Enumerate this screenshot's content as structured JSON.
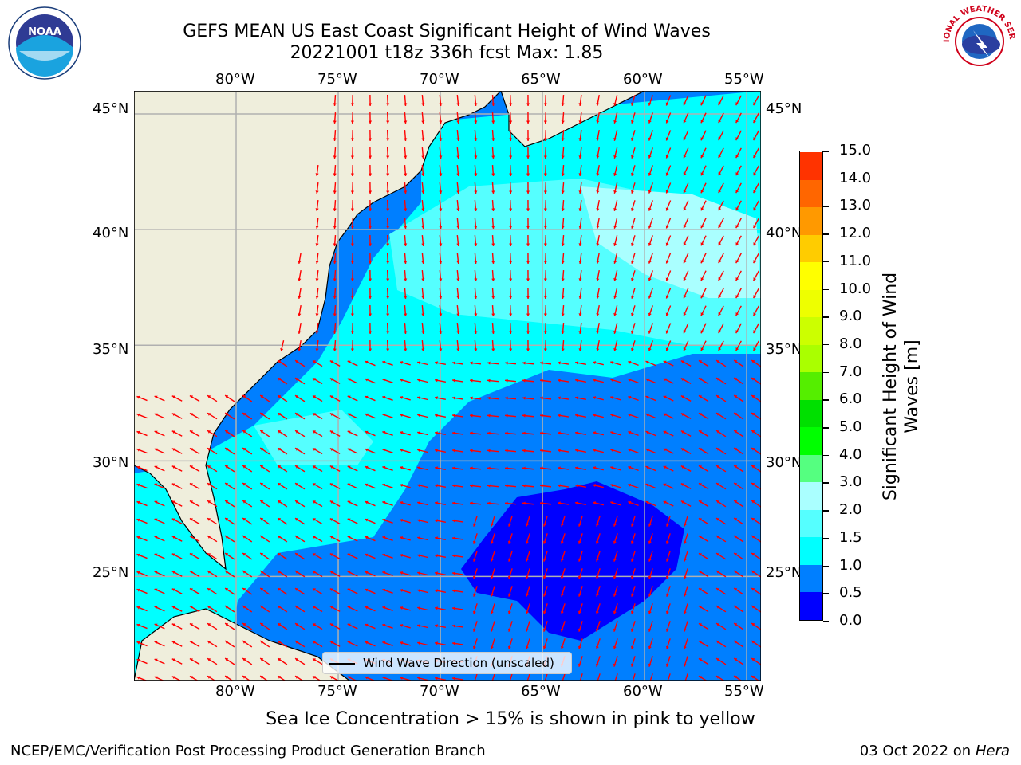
{
  "header": {
    "title_line1": "GEFS MEAN US East Coast Significant Height of Wind Waves",
    "title_line2": "20221001 t18z 336h fcst   Max: 1.85"
  },
  "logos": {
    "left": "NOAA",
    "right": "NATIONAL WEATHER SERVICE"
  },
  "map": {
    "lon_ticks": [
      "80°W",
      "75°W",
      "70°W",
      "65°W",
      "60°W",
      "55°W"
    ],
    "lat_ticks": [
      "45°N",
      "40°N",
      "35°N",
      "30°N",
      "25°N"
    ],
    "lon_range": [
      -85,
      -54.3
    ],
    "lat_range": [
      20.5,
      46
    ],
    "legend_label": "Wind Wave Direction (unscaled)",
    "arrow_color": "#ff0000",
    "land_color": "#efeedc",
    "grid_color": "#b0b0b0"
  },
  "colorbar": {
    "label": "Significant Height of Wind Waves [m]",
    "tick_labels": [
      "0.0",
      "0.5",
      "1.0",
      "1.5",
      "2.0",
      "3.0",
      "4.0",
      "5.0",
      "6.0",
      "7.0",
      "8.0",
      "9.0",
      "10.0",
      "11.0",
      "12.0",
      "13.0",
      "14.0",
      "15.0"
    ],
    "colors": [
      "#0000ff",
      "#007fff",
      "#00ffff",
      "#55ffff",
      "#aaffff",
      "#55ff80",
      "#00ff00",
      "#00e000",
      "#55ee00",
      "#aaff00",
      "#ccff00",
      "#eeff00",
      "#ffff00",
      "#ffcc00",
      "#ff9900",
      "#ff6600",
      "#ff3300",
      "#ff0000"
    ]
  },
  "footer": {
    "note": "Sea Ice Concentration > 15% is shown in pink to yellow",
    "left": "NCEP/EMC/Verification Post Processing Product Generation Branch",
    "right_date": "03 Oct 2022 on",
    "right_machine": "Hera"
  }
}
